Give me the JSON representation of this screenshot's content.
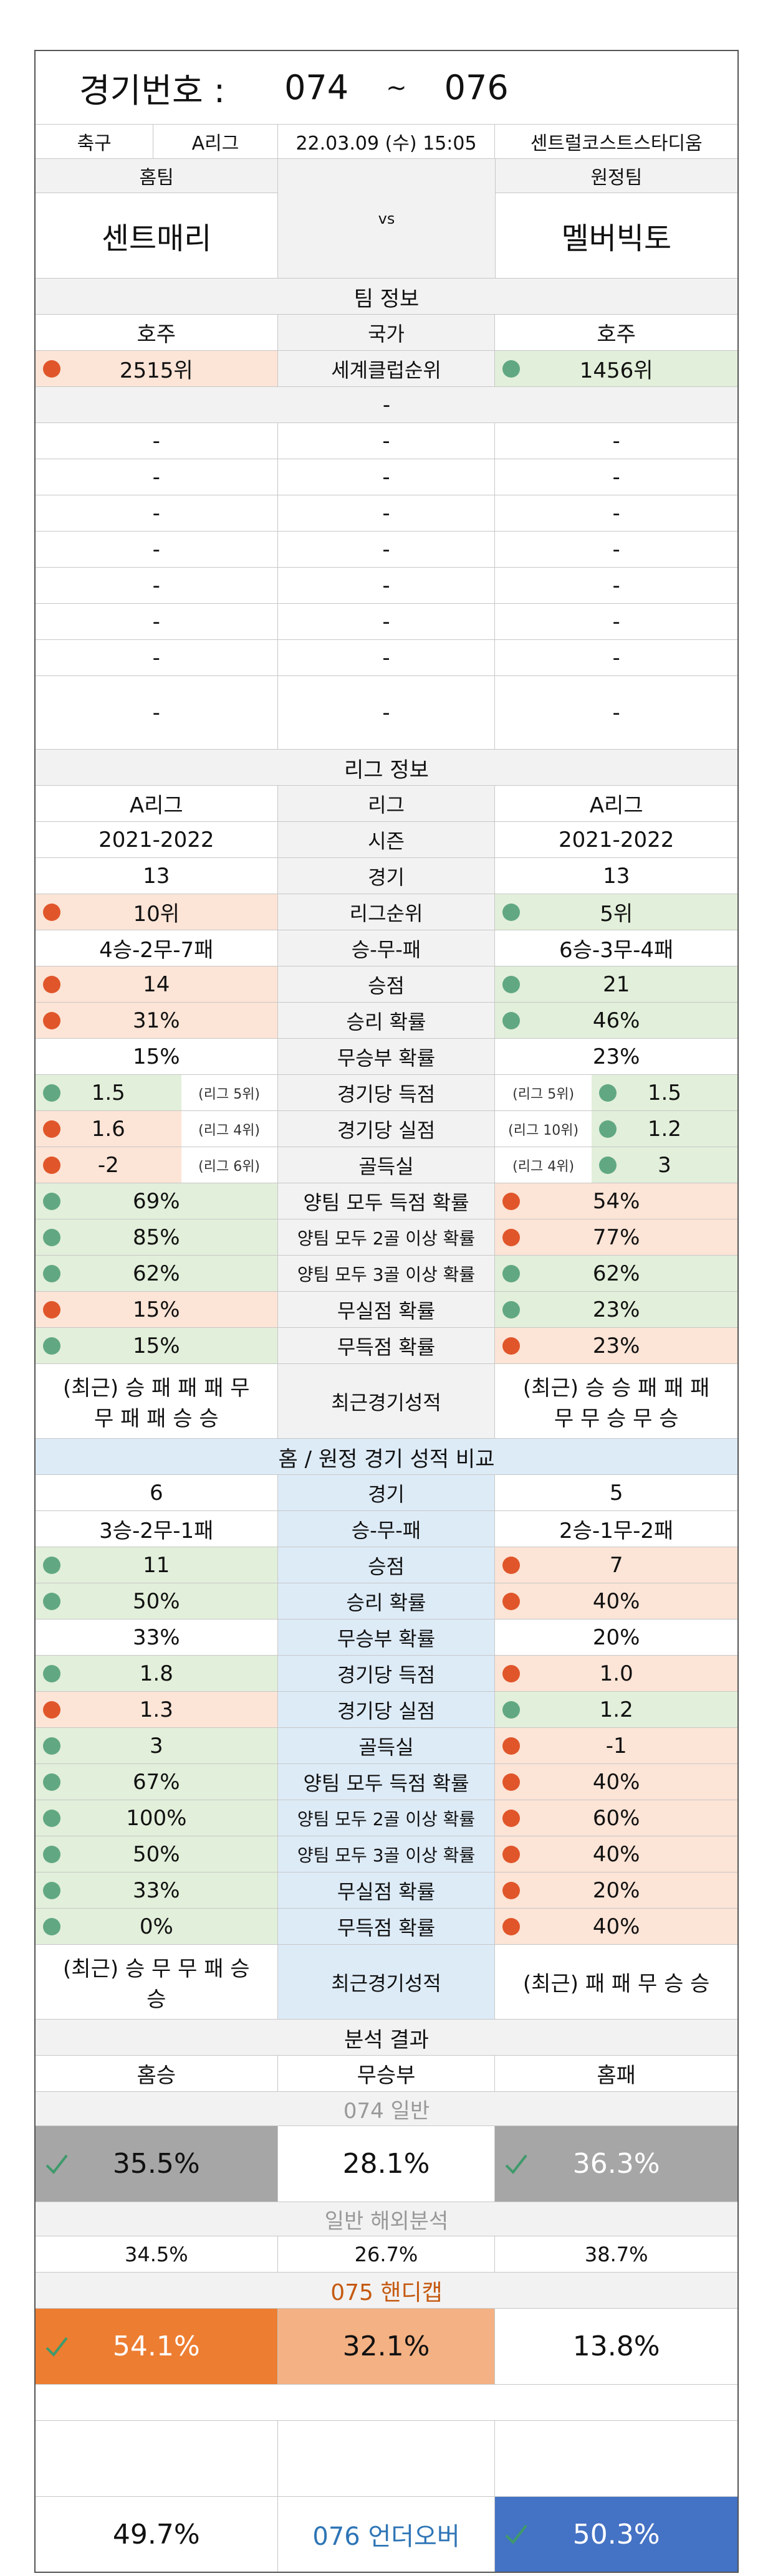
{
  "header": {
    "label": "경기번호 :",
    "from": "074",
    "tilde": "~",
    "to": "076"
  },
  "match": {
    "sport": "축구",
    "league": "A리그",
    "datetime": "22.03.09 (수) 15:05",
    "venue": "센트럴코스트스타디움"
  },
  "teams": {
    "home_label": "홈팀",
    "away_label": "원정팀",
    "home": "센트매리",
    "vs": "vs",
    "away": "멜버빅토"
  },
  "team_info": {
    "title": "팀 정보",
    "country": {
      "home": "호주",
      "label": "국가",
      "away": "호주"
    },
    "rank": {
      "home": "2515위",
      "label": "세계클럽순위",
      "away": "1456위"
    },
    "dash": "-"
  },
  "league_info": {
    "title": "리그 정보",
    "league": {
      "home": "A리그",
      "label": "리그",
      "away": "A리그"
    },
    "season": {
      "home": "2021-2022",
      "label": "시즌",
      "away": "2021-2022"
    },
    "games": {
      "home": "13",
      "label": "경기",
      "away": "13"
    },
    "rank": {
      "home": "10위",
      "label": "리그순위",
      "away": "5위"
    },
    "wdl": {
      "home": "4승-2무-7패",
      "label": "승-무-패",
      "away": "6승-3무-4패"
    },
    "points": {
      "home": "14",
      "label": "승점",
      "away": "21"
    },
    "win_rate": {
      "home": "31%",
      "label": "승리 확률",
      "away": "46%"
    },
    "draw_rate": {
      "home": "15%",
      "label": "무승부 확률",
      "away": "23%"
    },
    "scored": {
      "home": "1.5",
      "home_note": "(리그 5위)",
      "label": "경기당 득점",
      "away_note": "(리그 5위)",
      "away": "1.5"
    },
    "conceded": {
      "home": "1.6",
      "home_note": "(리그 4위)",
      "label": "경기당 실점",
      "away_note": "(리그 10위)",
      "away": "1.2"
    },
    "goal_diff": {
      "home": "-2",
      "home_note": "(리그 6위)",
      "label": "골득실",
      "away_note": "(리그 4위)",
      "away": "3"
    },
    "btts": {
      "home": "69%",
      "label": "양팀 모두 득점 확률",
      "away": "54%"
    },
    "btts2": {
      "home": "85%",
      "label": "양팀 모두 2골 이상 확률",
      "away": "77%"
    },
    "btts3": {
      "home": "62%",
      "label": "양팀 모두 3골 이상 확률",
      "away": "62%"
    },
    "clean": {
      "home": "15%",
      "label": "무실점 확률",
      "away": "23%"
    },
    "noscore": {
      "home": "15%",
      "label": "무득점 확률",
      "away": "23%"
    },
    "recent": {
      "home_1": "(최근) 승 패 패 패 무",
      "home_2": "무 패 패 승 승",
      "label": "최근경기성적",
      "away_1": "(최근) 승 승 패 패 패",
      "away_2": "무 무 승 무 승"
    }
  },
  "homeaway": {
    "title": "홈 / 원정 경기 성적 비교",
    "games": {
      "home": "6",
      "label": "경기",
      "away": "5"
    },
    "wdl": {
      "home": "3승-2무-1패",
      "label": "승-무-패",
      "away": "2승-1무-2패"
    },
    "points": {
      "home": "11",
      "label": "승점",
      "away": "7"
    },
    "win_rate": {
      "home": "50%",
      "label": "승리 확률",
      "away": "40%"
    },
    "draw_rate": {
      "home": "33%",
      "label": "무승부 확률",
      "away": "20%"
    },
    "scored": {
      "home": "1.8",
      "label": "경기당 득점",
      "away": "1.0"
    },
    "conceded": {
      "home": "1.3",
      "label": "경기당 실점",
      "away": "1.2"
    },
    "goal_diff": {
      "home": "3",
      "label": "골득실",
      "away": "-1"
    },
    "btts": {
      "home": "67%",
      "label": "양팀 모두 득점 확률",
      "away": "40%"
    },
    "btts2": {
      "home": "100%",
      "label": "양팀 모두 2골 이상 확률",
      "away": "60%"
    },
    "btts3": {
      "home": "50%",
      "label": "양팀 모두 3골 이상 확률",
      "away": "40%"
    },
    "clean": {
      "home": "33%",
      "label": "무실점 확률",
      "away": "20%"
    },
    "noscore": {
      "home": "0%",
      "label": "무득점 확률",
      "away": "40%"
    },
    "recent": {
      "home_1": "(최근) 승 무 무 패 승",
      "home_2": "승",
      "label": "최근경기성적",
      "away": "(최근) 패 패 무 승 승"
    }
  },
  "analysis": {
    "title": "분석 결과",
    "home_win": "홈승",
    "draw": "무승부",
    "home_loss": "홈패",
    "g074_title": "074 일반",
    "g074": {
      "home": "35.5%",
      "draw": "28.1%",
      "away": "36.3%"
    },
    "overseas_title": "일반 해외분석",
    "overseas": {
      "home": "34.5%",
      "draw": "26.7%",
      "away": "38.7%"
    },
    "g075_title": "075 핸디캡",
    "g075": {
      "home": "54.1%",
      "draw": "32.1%",
      "away": "13.8%"
    },
    "g076": {
      "under": "49.7%",
      "label": "076 언더오버",
      "over": "50.3%"
    }
  },
  "colors": {
    "green": "#e2efda",
    "red": "#fce4d6",
    "blue_section": "#ddebf7",
    "orange": "#ed7d31",
    "peach": "#f4b183",
    "navy": "#4472c4",
    "gray_block": "#a6a6a6"
  }
}
